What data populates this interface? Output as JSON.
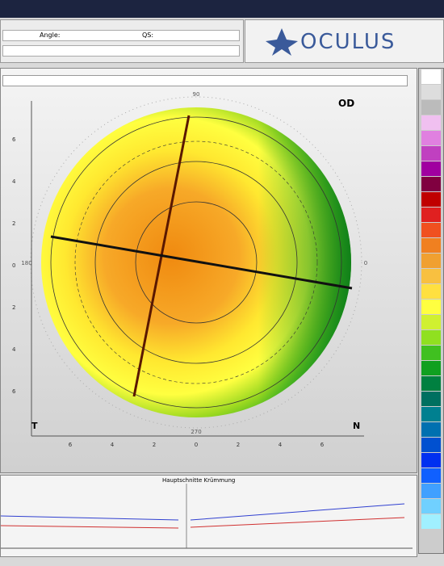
{
  "header": {
    "angle_label": "Angle:",
    "qs_label": "QS:",
    "logo": "OCULUS"
  },
  "map": {
    "eye": "OD",
    "temporal": "T",
    "nasal": "N",
    "y_ticks": [
      "6",
      "4",
      "2",
      "0",
      "2",
      "4",
      "6"
    ],
    "x_ticks": [
      "6",
      "4",
      "2",
      "0",
      "2",
      "4",
      "6"
    ],
    "angles": [
      "90",
      "180",
      "0",
      "270"
    ]
  },
  "graph": {
    "title": "Hauptschnitte Krümmung"
  }
}
